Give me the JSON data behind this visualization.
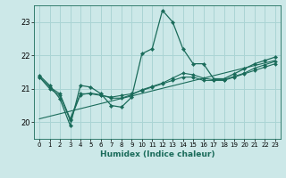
{
  "title": "",
  "xlabel": "Humidex (Indice chaleur)",
  "ylabel": "",
  "bg_color": "#cce8e8",
  "grid_color": "#aad4d4",
  "line_color": "#1a6b5a",
  "xlim": [
    -0.5,
    23.5
  ],
  "ylim": [
    19.5,
    23.5
  ],
  "yticks": [
    20,
    21,
    22,
    23
  ],
  "xticks": [
    0,
    1,
    2,
    3,
    4,
    5,
    6,
    7,
    8,
    9,
    10,
    11,
    12,
    13,
    14,
    15,
    16,
    17,
    18,
    19,
    20,
    21,
    22,
    23
  ],
  "line_main": {
    "x": [
      0,
      1,
      2,
      3,
      4,
      5,
      6,
      7,
      8,
      9,
      10,
      11,
      12,
      13,
      14,
      15,
      16,
      17,
      18,
      19,
      20,
      21,
      22,
      23
    ],
    "y": [
      21.4,
      21.1,
      20.7,
      19.9,
      21.1,
      21.05,
      20.85,
      20.5,
      20.45,
      20.75,
      22.05,
      22.2,
      23.35,
      23.0,
      22.2,
      21.75,
      21.75,
      21.3,
      21.3,
      21.45,
      21.6,
      21.75,
      21.85,
      21.95
    ]
  },
  "line_smooth1": {
    "x": [
      0,
      1,
      2,
      3,
      4,
      5,
      6,
      7,
      8,
      9,
      10,
      11,
      12,
      13,
      14,
      15,
      16,
      17,
      18,
      19,
      20,
      21,
      22,
      23
    ],
    "y": [
      21.35,
      21.05,
      20.85,
      20.1,
      20.85,
      20.85,
      20.8,
      20.75,
      20.8,
      20.85,
      20.95,
      21.05,
      21.15,
      21.25,
      21.35,
      21.35,
      21.25,
      21.25,
      21.25,
      21.35,
      21.45,
      21.55,
      21.65,
      21.75
    ]
  },
  "line_smooth2": {
    "x": [
      0,
      1,
      2,
      3,
      4,
      5,
      6,
      7,
      8,
      9,
      10,
      11,
      12,
      13,
      14,
      15,
      16,
      17,
      18,
      19,
      20,
      21,
      22,
      23
    ],
    "y": [
      21.35,
      21.0,
      20.8,
      20.05,
      20.82,
      20.87,
      20.82,
      20.72,
      20.72,
      20.82,
      20.97,
      21.07,
      21.17,
      21.32,
      21.47,
      21.42,
      21.32,
      21.27,
      21.27,
      21.37,
      21.47,
      21.62,
      21.72,
      21.82
    ]
  },
  "line_diag": {
    "x": [
      0,
      23
    ],
    "y": [
      20.1,
      21.85
    ]
  }
}
